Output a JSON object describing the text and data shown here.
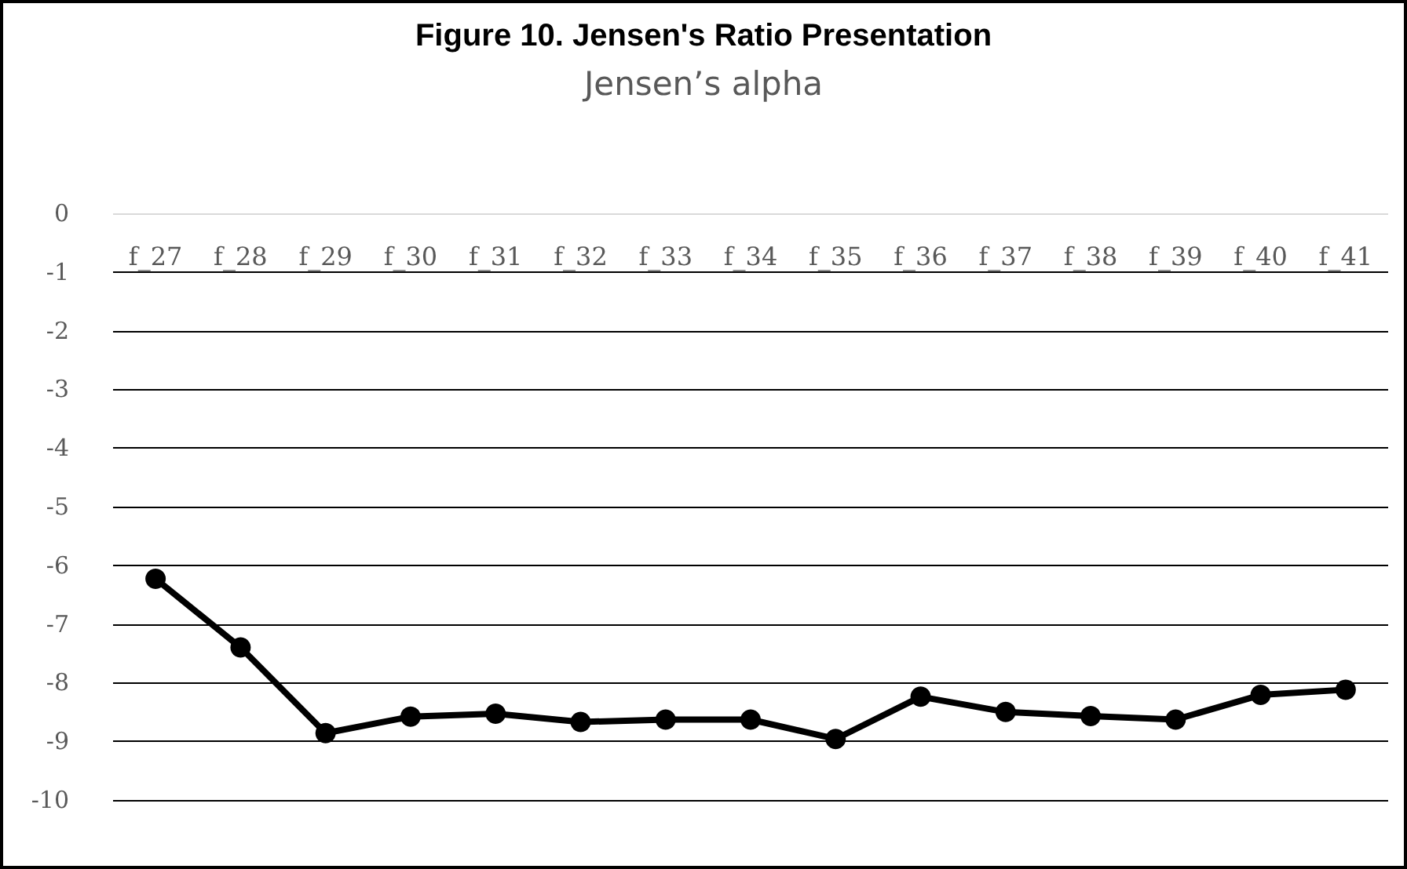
{
  "chart_data": {
    "type": "line",
    "title": "Figure 10. Jensen's Ratio Presentation",
    "subtitle": "Jensen’s alpha",
    "categories": [
      "f_27",
      "f_28",
      "f_29",
      "f_30",
      "f_31",
      "f_32",
      "f_33",
      "f_34",
      "f_35",
      "f_36",
      "f_37",
      "f_38",
      "f_39",
      "f_40",
      "f_41"
    ],
    "series": [
      {
        "color": "#000000",
        "values": [
          -6.23,
          -7.4,
          -8.86,
          -8.58,
          -8.53,
          -8.67,
          -8.63,
          -8.63,
          -8.96,
          -8.24,
          -8.5,
          -8.57,
          -8.63,
          -8.21,
          -8.12
        ]
      }
    ],
    "ylim": [
      -10,
      0
    ],
    "yticks": [
      -10,
      -9,
      -8,
      -7,
      -6,
      -5,
      -4,
      -3,
      -2,
      -1,
      0
    ],
    "grid": "y",
    "marker": "circle",
    "line_style": "solid"
  }
}
